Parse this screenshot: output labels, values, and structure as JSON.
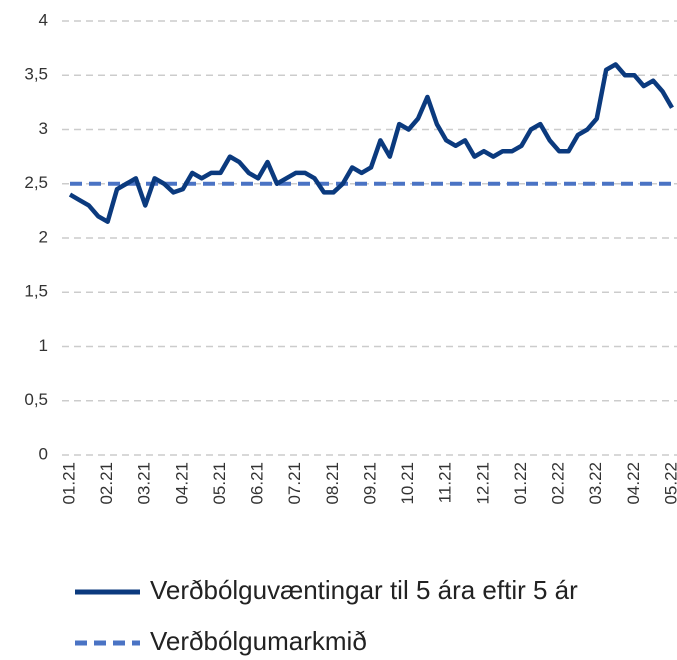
{
  "chart_data": {
    "type": "line",
    "categories": [
      "01.21",
      null,
      null,
      null,
      "02.21",
      null,
      null,
      null,
      "03.21",
      null,
      null,
      null,
      "04.21",
      null,
      null,
      null,
      "05.21",
      null,
      null,
      null,
      "06.21",
      null,
      null,
      null,
      "07.21",
      null,
      null,
      null,
      "08.21",
      null,
      null,
      null,
      "09.21",
      null,
      null,
      null,
      "10.21",
      null,
      null,
      null,
      "11.21",
      null,
      null,
      null,
      "12.21",
      null,
      null,
      null,
      "01.22",
      null,
      null,
      null,
      "02.22",
      null,
      null,
      null,
      "03.22",
      null,
      null,
      null,
      "04.22",
      null,
      null,
      null,
      "05.22"
    ],
    "series": [
      {
        "name": "Verðbólguvæntingar til 5 ára eftir 5 ár",
        "color": "#0b3a7e",
        "dash": false,
        "values": [
          2.4,
          2.35,
          2.3,
          2.2,
          2.15,
          2.45,
          2.5,
          2.55,
          2.3,
          2.55,
          2.5,
          2.42,
          2.45,
          2.6,
          2.55,
          2.6,
          2.6,
          2.75,
          2.7,
          2.6,
          2.55,
          2.7,
          2.5,
          2.55,
          2.6,
          2.6,
          2.55,
          2.42,
          2.42,
          2.5,
          2.65,
          2.6,
          2.65,
          2.9,
          2.75,
          3.05,
          3.0,
          3.1,
          3.3,
          3.05,
          2.9,
          2.85,
          2.9,
          2.75,
          2.8,
          2.75,
          2.8,
          2.8,
          2.85,
          3.0,
          3.05,
          2.9,
          2.8,
          2.8,
          2.95,
          3.0,
          3.1,
          3.55,
          3.6,
          3.5,
          3.5,
          3.4,
          3.45,
          3.35,
          3.2
        ]
      },
      {
        "name": "Verðbólgumarkmið",
        "color": "#4a73c4",
        "dash": true,
        "values": [
          2.5,
          2.5,
          2.5,
          2.5,
          2.5,
          2.5,
          2.5,
          2.5,
          2.5,
          2.5,
          2.5,
          2.5,
          2.5,
          2.5,
          2.5,
          2.5,
          2.5,
          2.5,
          2.5,
          2.5,
          2.5,
          2.5,
          2.5,
          2.5,
          2.5,
          2.5,
          2.5,
          2.5,
          2.5,
          2.5,
          2.5,
          2.5,
          2.5,
          2.5,
          2.5,
          2.5,
          2.5,
          2.5,
          2.5,
          2.5,
          2.5,
          2.5,
          2.5,
          2.5,
          2.5,
          2.5,
          2.5,
          2.5,
          2.5,
          2.5,
          2.5,
          2.5,
          2.5,
          2.5,
          2.5,
          2.5,
          2.5,
          2.5,
          2.5,
          2.5,
          2.5,
          2.5,
          2.5,
          2.5,
          2.5
        ]
      }
    ],
    "ylim": [
      0,
      4
    ],
    "yticks": [
      0,
      {
        "value": 0.5,
        "label": "0,5"
      },
      1,
      {
        "value": 1.5,
        "label": "1,5"
      },
      2,
      {
        "value": 2.5,
        "label": "2,5"
      },
      3,
      {
        "value": 3.5,
        "label": "3,5"
      },
      4
    ],
    "grid": true,
    "legend": "bottom"
  }
}
